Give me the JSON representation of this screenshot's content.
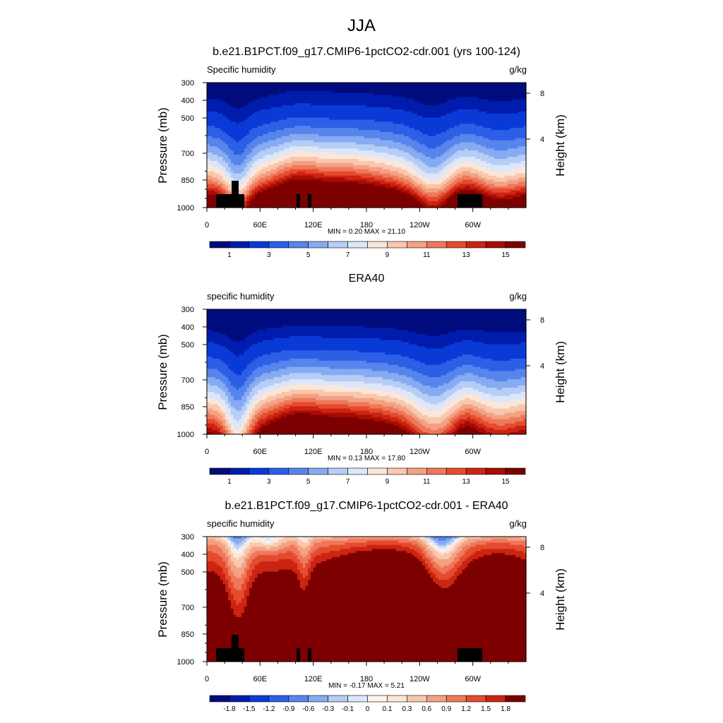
{
  "page_title": "JJA",
  "chart_data": [
    {
      "type": "heatmap",
      "title": "b.e21.B1PCT.f09_g17.CMIP6-1pctCO2-cdr.001 (yrs 100-124)",
      "left_label": "Specific humidity",
      "right_label": "g/kg",
      "ylabel": "Pressure (mb)",
      "ylabel_right": "Height (km)",
      "x_ticks": [
        "0",
        "60E",
        "120E",
        "180",
        "120W",
        "60W"
      ],
      "y_ticks": [
        "300",
        "400",
        "500",
        "700",
        "850",
        "1000"
      ],
      "y_right_ticks": [
        "8",
        "4"
      ],
      "xlim": [
        0,
        360
      ],
      "ylim": [
        1000,
        300
      ],
      "min_max": "MIN =   0.20  MAX =  21.10",
      "colorbar_labels": [
        "1",
        "3",
        "5",
        "7",
        "9",
        "11",
        "13",
        "15"
      ],
      "field": "model",
      "has_terrain_mask": true
    },
    {
      "type": "heatmap",
      "title": "ERA40",
      "left_label": "specific humidity",
      "right_label": "g/kg",
      "ylabel": "Pressure (mb)",
      "ylabel_right": "Height (km)",
      "x_ticks": [
        "0",
        "60E",
        "120E",
        "180",
        "120W",
        "60W"
      ],
      "y_ticks": [
        "300",
        "400",
        "500",
        "700",
        "850",
        "1000"
      ],
      "y_right_ticks": [
        "8",
        "4"
      ],
      "xlim": [
        0,
        360
      ],
      "ylim": [
        1000,
        300
      ],
      "min_max": "MIN =   0.13  MAX =  17.80",
      "colorbar_labels": [
        "1",
        "3",
        "5",
        "7",
        "9",
        "11",
        "13",
        "15"
      ],
      "field": "obs",
      "has_terrain_mask": false
    },
    {
      "type": "heatmap",
      "title": "b.e21.B1PCT.f09_g17.CMIP6-1pctCO2-cdr.001 - ERA40",
      "left_label": "specific humidity",
      "right_label": "g/kg",
      "ylabel": "Pressure (mb)",
      "ylabel_right": "Height (km)",
      "x_ticks": [
        "0",
        "60E",
        "120E",
        "180",
        "120W",
        "60W"
      ],
      "y_ticks": [
        "300",
        "400",
        "500",
        "700",
        "850",
        "1000"
      ],
      "y_right_ticks": [
        "8",
        "4"
      ],
      "xlim": [
        0,
        360
      ],
      "ylim": [
        1000,
        300
      ],
      "min_max": "MIN =  -0.17  MAX =   5.21",
      "colorbar_labels": [
        "-1.8",
        "-1.5",
        "-1.2",
        "-0.9",
        "-0.6",
        "-0.3",
        "-0.1",
        "0",
        "0.1",
        "0.3",
        "0.6",
        "0.9",
        "1.2",
        "1.5",
        "1.8"
      ],
      "field": "diff",
      "has_terrain_mask": true
    }
  ],
  "colors": {
    "sequential": [
      "#000c7d",
      "#001cad",
      "#0a3ad6",
      "#2c5fe6",
      "#5685ec",
      "#86abf2",
      "#b6cdf6",
      "#dde6fa",
      "#fbe7d9",
      "#f8c7ad",
      "#f4a183",
      "#ee785a",
      "#e54b2f",
      "#cc2412",
      "#a90c03",
      "#7d0000"
    ],
    "diverging": [
      "#000c7d",
      "#001cad",
      "#0a3ad6",
      "#2c5fe6",
      "#5685ec",
      "#86abf2",
      "#b6cdf6",
      "#dde6fa",
      "#fdf3ec",
      "#fbe7d9",
      "#f8c7ad",
      "#f4a183",
      "#ee785a",
      "#e54b2f",
      "#cc2412",
      "#7d0000"
    ],
    "terrain": "#000000"
  }
}
